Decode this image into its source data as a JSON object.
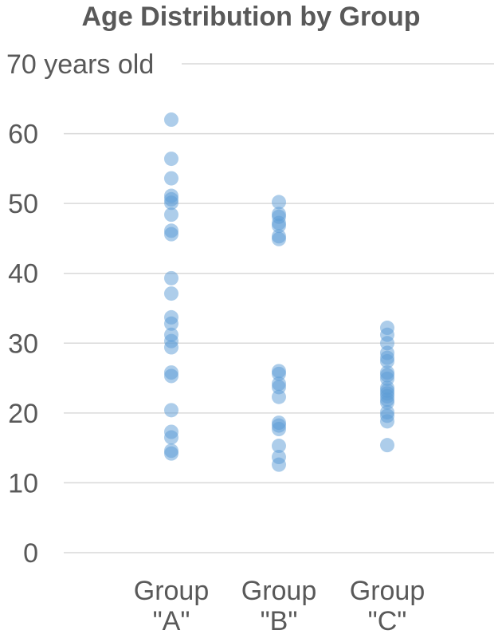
{
  "chart_data": {
    "type": "scatter",
    "title": "Age Distribution by Group",
    "xlabel": "",
    "ylabel": "",
    "ylim": [
      0,
      70
    ],
    "y_ticks": [
      {
        "value": 0,
        "label": "0"
      },
      {
        "value": 10,
        "label": "10"
      },
      {
        "value": 20,
        "label": "20"
      },
      {
        "value": 30,
        "label": "30"
      },
      {
        "value": 40,
        "label": "40"
      },
      {
        "value": 50,
        "label": "50"
      },
      {
        "value": 60,
        "label": "60"
      },
      {
        "value": 70,
        "label": "70 years old"
      }
    ],
    "grid": true,
    "legend": "none",
    "marker_color": "#5b9bd5",
    "categories": [
      {
        "name": "Group \"A\"",
        "label_lines": [
          "Group",
          "\"A\""
        ]
      },
      {
        "name": "Group \"B\"",
        "label_lines": [
          "Group",
          "\"B\""
        ]
      },
      {
        "name": "Group \"C\"",
        "label_lines": [
          "Group",
          "\"C\""
        ]
      }
    ],
    "series": [
      {
        "values": [
          62.0,
          56.4,
          53.6,
          51.1,
          50.6,
          50.1,
          48.4,
          46.1,
          45.6,
          39.3,
          37.1,
          33.7,
          32.8,
          31.2,
          30.3,
          29.4,
          25.8,
          25.3,
          20.4,
          17.3,
          16.5,
          14.6,
          14.2
        ]
      },
      {
        "values": [
          50.2,
          48.5,
          48.1,
          47.2,
          46.8,
          45.3,
          44.9,
          26.0,
          25.6,
          24.2,
          23.7,
          22.3,
          18.6,
          18.2,
          17.7,
          15.3,
          13.7,
          12.6
        ]
      },
      {
        "values": [
          32.2,
          31.2,
          30.0,
          28.6,
          27.9,
          27.4,
          25.8,
          25.4,
          24.9,
          23.6,
          23.2,
          22.8,
          22.4,
          21.9,
          21.5,
          20.1,
          19.6,
          18.8,
          15.4
        ]
      }
    ]
  }
}
